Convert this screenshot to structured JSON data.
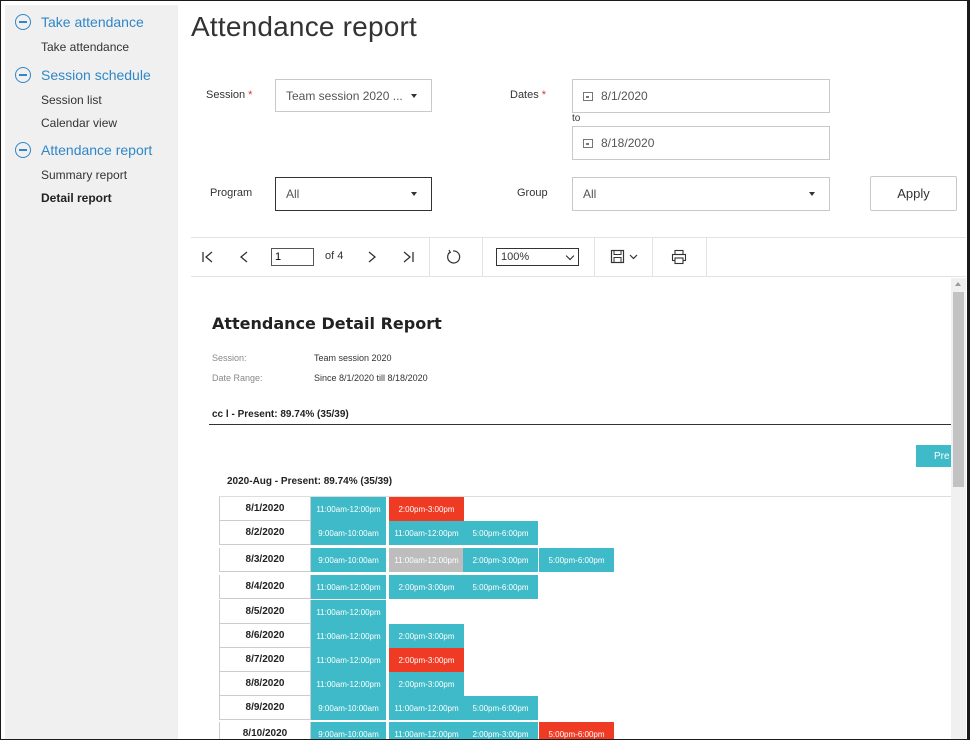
{
  "sidebar": {
    "groups": [
      {
        "label": "Take attendance",
        "items": [
          "Take attendance"
        ]
      },
      {
        "label": "Session schedule",
        "items": [
          "Session list",
          "Calendar view"
        ]
      },
      {
        "label": "Attendance report",
        "items": [
          "Summary report",
          "Detail report"
        ]
      }
    ],
    "active_item": "Detail report"
  },
  "page_title": "Attendance report",
  "filters": {
    "session_label": "Session",
    "session_value": "Team session 2020 ...",
    "dates_label": "Dates",
    "required_mark": "*",
    "date_from": "8/1/2020",
    "date_to_label": "to",
    "date_to": "8/18/2020",
    "program_label": "Program",
    "program_value": "All",
    "group_label": "Group",
    "group_value": "All",
    "apply_label": "Apply"
  },
  "toolbar": {
    "page_value": "1",
    "page_of": "of 4",
    "zoom_value": "100%"
  },
  "report": {
    "title": "Attendance Detail Report",
    "session_label": "Session:",
    "session_value": "Team session 2020",
    "range_label": "Date Range:",
    "range_value": "Since 8/1/2020 till 8/18/2020",
    "group_line": "cc l - Present: 89.74% (35/39)",
    "pre_button_label": "Pre",
    "month_line": "2020-Aug - Present: 89.74% (35/39)",
    "status_colors": {
      "present": "#3fbac8",
      "absent": "#ef3a24",
      "excused": "#bdbdbd"
    },
    "days": [
      {
        "date": "8/1/2020",
        "slots": [
          {
            "time": "11:00am-12:00pm",
            "status": "present"
          },
          {
            "time": "2:00pm-3:00pm",
            "status": "absent"
          }
        ]
      },
      {
        "date": "8/2/2020",
        "slots": [
          {
            "time": "9:00am-10:00am",
            "status": "present"
          },
          {
            "time": "11:00am-12:00pm",
            "status": "present"
          },
          {
            "time": "5:00pm-6:00pm",
            "status": "present"
          }
        ]
      },
      {
        "date": "8/3/2020",
        "slots": [
          {
            "time": "9:00am-10:00am",
            "status": "present"
          },
          {
            "time": "11:00am-12:00pm",
            "status": "excused"
          },
          {
            "time": "2:00pm-3:00pm",
            "status": "present"
          },
          {
            "time": "5:00pm-6:00pm",
            "status": "present"
          }
        ]
      },
      {
        "date": "8/4/2020",
        "slots": [
          {
            "time": "11:00am-12:00pm",
            "status": "present"
          },
          {
            "time": "2:00pm-3:00pm",
            "status": "present"
          },
          {
            "time": "5:00pm-6:00pm",
            "status": "present"
          }
        ]
      },
      {
        "date": "8/5/2020",
        "slots": [
          {
            "time": "11:00am-12:00pm",
            "status": "present"
          }
        ]
      },
      {
        "date": "8/6/2020",
        "slots": [
          {
            "time": "11:00am-12:00pm",
            "status": "present"
          },
          {
            "time": "2:00pm-3:00pm",
            "status": "present"
          }
        ]
      },
      {
        "date": "8/7/2020",
        "slots": [
          {
            "time": "11:00am-12:00pm",
            "status": "present"
          },
          {
            "time": "2:00pm-3:00pm",
            "status": "absent"
          }
        ]
      },
      {
        "date": "8/8/2020",
        "slots": [
          {
            "time": "11:00am-12:00pm",
            "status": "present"
          },
          {
            "time": "2:00pm-3:00pm",
            "status": "present"
          }
        ]
      },
      {
        "date": "8/9/2020",
        "slots": [
          {
            "time": "9:00am-10:00am",
            "status": "present"
          },
          {
            "time": "11:00am-12:00pm",
            "status": "present"
          },
          {
            "time": "5:00pm-6:00pm",
            "status": "present"
          }
        ]
      },
      {
        "date": "8/10/2020",
        "slots": [
          {
            "time": "9:00am-10:00am",
            "status": "present"
          },
          {
            "time": "11:00am-12:00pm",
            "status": "present"
          },
          {
            "time": "2:00pm-3:00pm",
            "status": "present"
          },
          {
            "time": "5:00pm-6:00pm",
            "status": "absent"
          }
        ]
      }
    ]
  }
}
